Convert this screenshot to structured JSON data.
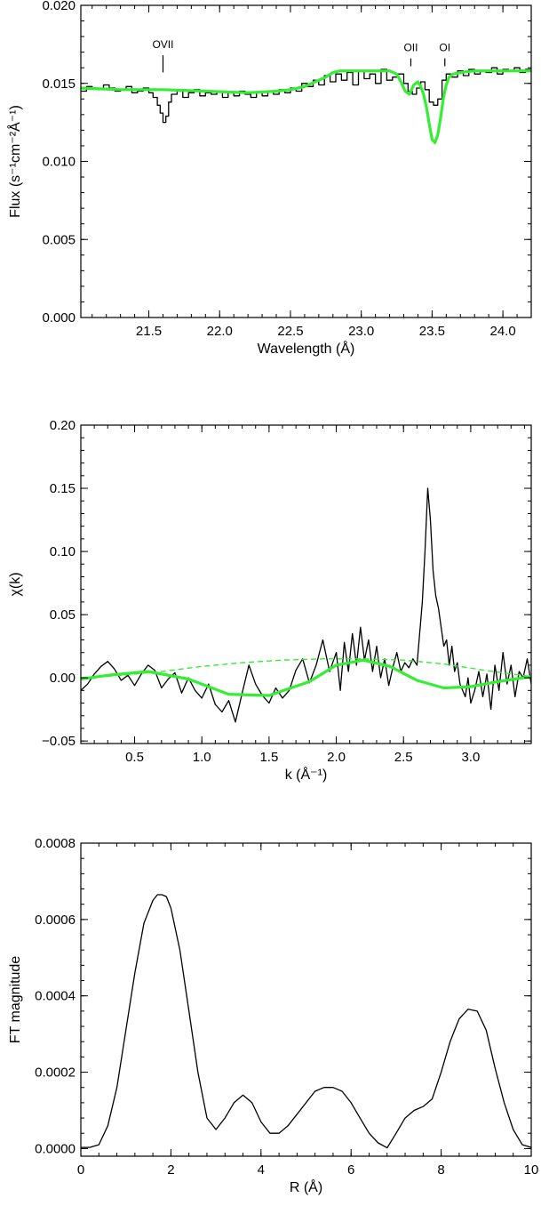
{
  "chart_data": [
    {
      "type": "line",
      "xlabel": "Wavelength (Å)",
      "ylabel": "Flux (s⁻¹cm⁻²Å⁻¹)",
      "xlim": [
        21.02,
        24.2
      ],
      "ylim": [
        0.0,
        0.02
      ],
      "xticks": [
        21.5,
        22.0,
        22.5,
        23.0,
        23.5,
        24.0
      ],
      "xtick_labels": [
        "21.5",
        "22.0",
        "22.5",
        "23.0",
        "23.5",
        "24.0"
      ],
      "yticks": [
        0.0,
        0.005,
        0.01,
        0.015,
        0.02
      ],
      "ytick_labels": [
        "0.000",
        "0.005",
        "0.010",
        "0.015",
        "0.020"
      ],
      "annotations": [
        {
          "text": "OVII",
          "x": 21.6,
          "marker_from": 0.0168,
          "marker_to": 0.0157
        },
        {
          "text": "OII",
          "x": 23.35,
          "marker_from": 0.0166,
          "marker_to": 0.0161
        },
        {
          "text": "OI",
          "x": 23.59,
          "marker_from": 0.0166,
          "marker_to": 0.0161
        }
      ],
      "series": [
        {
          "style": "histogram",
          "color": "#000000",
          "x": [
            21.02,
            21.06,
            21.1,
            21.14,
            21.18,
            21.22,
            21.26,
            21.3,
            21.34,
            21.38,
            21.42,
            21.46,
            21.5,
            21.53,
            21.56,
            21.58,
            21.6,
            21.62,
            21.64,
            21.66,
            21.7,
            21.74,
            21.78,
            21.82,
            21.86,
            21.9,
            21.94,
            21.98,
            22.02,
            22.06,
            22.1,
            22.14,
            22.18,
            22.22,
            22.26,
            22.3,
            22.34,
            22.38,
            22.42,
            22.46,
            22.5,
            22.54,
            22.58,
            22.62,
            22.66,
            22.7,
            22.74,
            22.78,
            22.82,
            22.86,
            22.9,
            22.94,
            22.98,
            23.02,
            23.06,
            23.1,
            23.14,
            23.18,
            23.22,
            23.26,
            23.3,
            23.33,
            23.36,
            23.39,
            23.42,
            23.45,
            23.48,
            23.51,
            23.54,
            23.57,
            23.6,
            23.64,
            23.68,
            23.72,
            23.76,
            23.8,
            23.84,
            23.88,
            23.92,
            23.96,
            24.0,
            24.04,
            24.08,
            24.12,
            24.16,
            24.2
          ],
          "y": [
            0.0145,
            0.0148,
            0.0147,
            0.0146,
            0.0149,
            0.0147,
            0.0145,
            0.0146,
            0.0148,
            0.0144,
            0.0145,
            0.0147,
            0.0144,
            0.0141,
            0.0136,
            0.0131,
            0.0125,
            0.0129,
            0.0138,
            0.0143,
            0.0145,
            0.0141,
            0.0144,
            0.0146,
            0.0142,
            0.0144,
            0.0143,
            0.0145,
            0.0141,
            0.0144,
            0.0142,
            0.0145,
            0.0143,
            0.0141,
            0.0144,
            0.0142,
            0.0145,
            0.0143,
            0.0146,
            0.0144,
            0.0147,
            0.0145,
            0.015,
            0.0148,
            0.0152,
            0.0149,
            0.0155,
            0.0151,
            0.0156,
            0.0152,
            0.0157,
            0.0149,
            0.0158,
            0.0153,
            0.0156,
            0.015,
            0.0159,
            0.0152,
            0.0154,
            0.0156,
            0.015,
            0.0145,
            0.0143,
            0.0147,
            0.0151,
            0.0146,
            0.0138,
            0.0136,
            0.014,
            0.0152,
            0.0156,
            0.0154,
            0.0158,
            0.0155,
            0.0159,
            0.0156,
            0.0158,
            0.0157,
            0.016,
            0.0156,
            0.0159,
            0.0158,
            0.016,
            0.0157,
            0.0159,
            0.0158
          ]
        },
        {
          "style": "line",
          "color": "#33ee33",
          "x": [
            21.02,
            21.3,
            21.6,
            21.9,
            22.2,
            22.4,
            22.5,
            22.6,
            22.7,
            22.75,
            22.8,
            22.85,
            22.9,
            23.0,
            23.1,
            23.2,
            23.25,
            23.28,
            23.31,
            23.34,
            23.37,
            23.4,
            23.42,
            23.44,
            23.46,
            23.48,
            23.5,
            23.52,
            23.54,
            23.56,
            23.58,
            23.6,
            23.62,
            23.65,
            23.7,
            23.8,
            23.9,
            24.0,
            24.1,
            24.2
          ],
          "y": [
            0.0147,
            0.0146,
            0.0146,
            0.0145,
            0.0144,
            0.0145,
            0.0146,
            0.0148,
            0.0152,
            0.0154,
            0.0157,
            0.0158,
            0.0158,
            0.0158,
            0.0158,
            0.0158,
            0.0156,
            0.0151,
            0.0145,
            0.0143,
            0.0149,
            0.0151,
            0.0148,
            0.0143,
            0.0135,
            0.0124,
            0.0114,
            0.0112,
            0.0117,
            0.0128,
            0.0141,
            0.0149,
            0.0154,
            0.0156,
            0.0157,
            0.0158,
            0.0158,
            0.0158,
            0.0158,
            0.0158
          ]
        }
      ]
    },
    {
      "type": "line",
      "xlabel": "k (Å⁻¹)",
      "ylabel": "χ(k)",
      "xlim": [
        0.1,
        3.45
      ],
      "ylim": [
        -0.052,
        0.2
      ],
      "xticks": [
        0.5,
        1.0,
        1.5,
        2.0,
        2.5,
        3.0
      ],
      "xtick_labels": [
        "0.5",
        "1.0",
        "1.5",
        "2.0",
        "2.5",
        "3.0"
      ],
      "yticks": [
        -0.05,
        0.0,
        0.05,
        0.1,
        0.15,
        0.2
      ],
      "ytick_labels": [
        "−0.05",
        "0.00",
        "0.05",
        "0.10",
        "0.15",
        "0.20"
      ],
      "series": [
        {
          "style": "line",
          "color": "#000000",
          "x": [
            0.1,
            0.15,
            0.2,
            0.25,
            0.3,
            0.35,
            0.4,
            0.45,
            0.5,
            0.55,
            0.6,
            0.65,
            0.7,
            0.75,
            0.8,
            0.85,
            0.9,
            0.95,
            1.0,
            1.05,
            1.1,
            1.15,
            1.2,
            1.25,
            1.3,
            1.35,
            1.4,
            1.45,
            1.5,
            1.55,
            1.6,
            1.65,
            1.7,
            1.75,
            1.8,
            1.85,
            1.9,
            1.95,
            2.0,
            2.03,
            2.06,
            2.09,
            2.12,
            2.15,
            2.18,
            2.21,
            2.24,
            2.27,
            2.3,
            2.33,
            2.36,
            2.39,
            2.42,
            2.45,
            2.48,
            2.51,
            2.54,
            2.57,
            2.6,
            2.62,
            2.64,
            2.66,
            2.68,
            2.7,
            2.72,
            2.74,
            2.76,
            2.78,
            2.8,
            2.82,
            2.84,
            2.86,
            2.88,
            2.9,
            2.92,
            2.94,
            2.96,
            2.98,
            3.0,
            3.03,
            3.06,
            3.09,
            3.12,
            3.15,
            3.18,
            3.21,
            3.24,
            3.27,
            3.3,
            3.33,
            3.36,
            3.39,
            3.42,
            3.45
          ],
          "y": [
            -0.01,
            -0.005,
            0.003,
            0.009,
            0.013,
            0.007,
            -0.002,
            0.002,
            -0.006,
            0.003,
            0.01,
            0.006,
            -0.008,
            -0.001,
            0.004,
            -0.012,
            0.0,
            -0.01,
            -0.016,
            -0.005,
            -0.021,
            -0.027,
            -0.018,
            -0.035,
            -0.012,
            0.01,
            -0.005,
            -0.014,
            -0.02,
            -0.008,
            -0.016,
            -0.01,
            0.006,
            0.015,
            -0.004,
            0.01,
            0.03,
            0.005,
            0.02,
            -0.01,
            0.028,
            0.005,
            0.035,
            0.01,
            0.04,
            0.014,
            0.03,
            0.005,
            0.025,
            0.0,
            0.015,
            -0.006,
            0.008,
            0.02,
            0.005,
            0.012,
            0.008,
            0.015,
            0.01,
            0.035,
            0.06,
            0.1,
            0.15,
            0.125,
            0.085,
            0.065,
            0.055,
            0.04,
            0.025,
            0.03,
            0.01,
            0.025,
            0.005,
            0.012,
            -0.005,
            -0.01,
            -0.015,
            0.0,
            -0.02,
            -0.01,
            0.005,
            -0.015,
            0.003,
            -0.025,
            0.01,
            -0.01,
            0.02,
            -0.005,
            0.01,
            -0.015,
            0.005,
            0.0,
            0.015,
            -0.005
          ]
        },
        {
          "style": "line",
          "color": "#33ee33",
          "x": [
            0.1,
            0.3,
            0.6,
            0.9,
            1.2,
            1.5,
            1.8,
            2.0,
            2.2,
            2.4,
            2.6,
            2.8,
            3.0,
            3.2,
            3.45
          ],
          "y": [
            -0.001,
            0.002,
            0.005,
            -0.001,
            -0.013,
            -0.014,
            -0.003,
            0.01,
            0.014,
            0.009,
            -0.002,
            -0.008,
            -0.007,
            -0.003,
            0.001
          ]
        },
        {
          "style": "dashed",
          "color": "#33ee33",
          "x": [
            0.1,
            0.4,
            0.7,
            1.0,
            1.3,
            1.6,
            1.9,
            2.2,
            2.5,
            2.8,
            3.1,
            3.45
          ],
          "y": [
            0.0,
            0.002,
            0.005,
            0.009,
            0.012,
            0.014,
            0.015,
            0.015,
            0.014,
            0.011,
            0.006,
            0.001
          ]
        }
      ]
    },
    {
      "type": "line",
      "xlabel": "R (Å)",
      "ylabel": "FT magnitude",
      "xlim": [
        0,
        10
      ],
      "ylim": [
        -2e-05,
        0.0008
      ],
      "xticks": [
        0,
        2,
        4,
        6,
        8,
        10
      ],
      "xtick_labels": [
        "0",
        "2",
        "4",
        "6",
        "8",
        "10"
      ],
      "yticks": [
        0.0,
        0.0002,
        0.0004,
        0.0006,
        0.0008
      ],
      "ytick_labels": [
        "0.0000",
        "0.0002",
        "0.0004",
        "0.0006",
        "0.0008"
      ],
      "series": [
        {
          "style": "line",
          "color": "#000000",
          "x": [
            0.0,
            0.2,
            0.4,
            0.6,
            0.8,
            1.0,
            1.2,
            1.4,
            1.6,
            1.7,
            1.8,
            1.9,
            2.0,
            2.2,
            2.4,
            2.6,
            2.8,
            3.0,
            3.2,
            3.4,
            3.6,
            3.8,
            4.0,
            4.2,
            4.4,
            4.6,
            4.8,
            5.0,
            5.2,
            5.4,
            5.6,
            5.8,
            6.0,
            6.2,
            6.4,
            6.6,
            6.8,
            7.0,
            7.2,
            7.4,
            7.6,
            7.8,
            8.0,
            8.2,
            8.4,
            8.6,
            8.8,
            9.0,
            9.2,
            9.4,
            9.6,
            9.8,
            10.0
          ],
          "y": [
            3e-06,
            3e-06,
            1e-05,
            6e-05,
            0.00016,
            0.00031,
            0.00046,
            0.00059,
            0.00065,
            0.000665,
            0.000665,
            0.00066,
            0.00063,
            0.00052,
            0.00036,
            0.0002,
            8e-05,
            5e-05,
            8e-05,
            0.00012,
            0.00014,
            0.00012,
            7e-05,
            4e-05,
            4e-05,
            6e-05,
            9e-05,
            0.00012,
            0.00015,
            0.00016,
            0.00016,
            0.00015,
            0.00012,
            8e-05,
            4e-05,
            1.5e-05,
            2e-06,
            4e-05,
            8e-05,
            0.0001,
            0.00011,
            0.00013,
            0.0002,
            0.00028,
            0.00034,
            0.000365,
            0.00036,
            0.00031,
            0.00021,
            0.00012,
            5e-05,
            1e-05,
            3e-06
          ]
        }
      ]
    }
  ]
}
